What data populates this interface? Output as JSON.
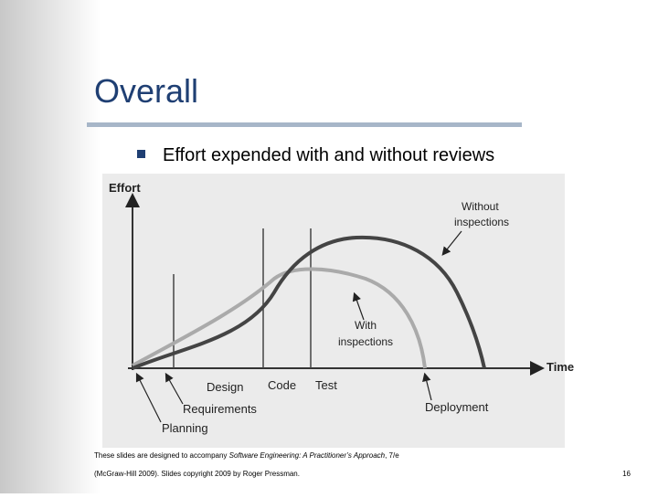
{
  "title": "Overall",
  "bullet": "Effort expended with and without reviews",
  "diagram": {
    "y_axis_label": "Effort",
    "x_axis_label": "Time",
    "curve_labels": {
      "without": [
        "Without",
        "inspections"
      ],
      "with": [
        "With",
        "inspections"
      ]
    },
    "phases": [
      "Planning",
      "Requirements",
      "Design",
      "Code",
      "Test",
      "Deployment"
    ]
  },
  "footer": {
    "line1_pre": "These slides are designed to accompany ",
    "book": "Software Engineering: A Practitioner’s Approach",
    "line1_post": ", 7/e",
    "line2": "(McGraw-Hill 2009). Slides copyright 2009 by Roger Pressman.",
    "page": "16"
  }
}
